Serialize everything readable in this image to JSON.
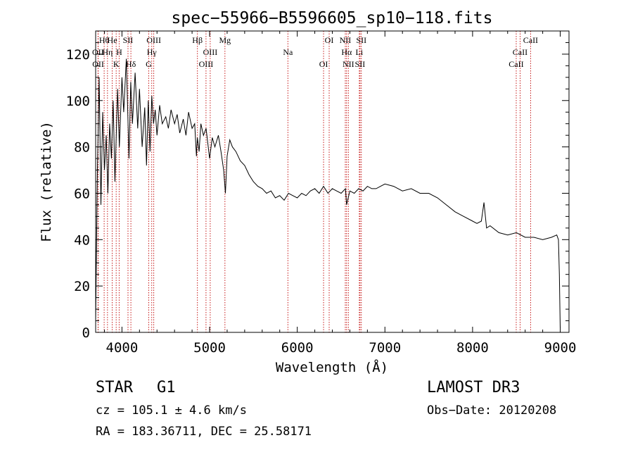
{
  "chart_data": {
    "type": "line",
    "title": "spec−55966−B5596605_sp10−118.fits",
    "xlabel": "Wavelength (Å)",
    "ylabel": "Flux (relative)",
    "xlim": [
      3700,
      9100
    ],
    "ylim": [
      0,
      130
    ],
    "xticks": [
      4000,
      5000,
      6000,
      7000,
      8000,
      9000
    ],
    "yticks": [
      0,
      20,
      40,
      60,
      80,
      100,
      120
    ],
    "grid": false,
    "series": [
      {
        "name": "flux",
        "x": [
          3700,
          3720,
          3740,
          3760,
          3780,
          3800,
          3820,
          3840,
          3860,
          3880,
          3900,
          3920,
          3950,
          3970,
          4000,
          4020,
          4050,
          4080,
          4100,
          4120,
          4150,
          4180,
          4200,
          4230,
          4260,
          4280,
          4300,
          4320,
          4340,
          4360,
          4380,
          4400,
          4430,
          4460,
          4500,
          4530,
          4560,
          4600,
          4630,
          4660,
          4700,
          4730,
          4760,
          4800,
          4830,
          4850,
          4860,
          4880,
          4900,
          4930,
          4960,
          5000,
          5030,
          5060,
          5100,
          5130,
          5160,
          5180,
          5200,
          5230,
          5260,
          5300,
          5350,
          5400,
          5450,
          5500,
          5550,
          5600,
          5650,
          5700,
          5750,
          5800,
          5850,
          5900,
          5950,
          6000,
          6050,
          6100,
          6150,
          6200,
          6250,
          6300,
          6350,
          6400,
          6450,
          6500,
          6550,
          6563,
          6600,
          6650,
          6700,
          6750,
          6800,
          6850,
          6900,
          6950,
          7000,
          7100,
          7200,
          7300,
          7400,
          7500,
          7600,
          7700,
          7800,
          7900,
          8000,
          8050,
          8100,
          8130,
          8160,
          8200,
          8300,
          8400,
          8500,
          8600,
          8700,
          8800,
          8900,
          8960,
          8980,
          8990,
          9000
        ],
        "values": [
          5,
          70,
          110,
          55,
          95,
          70,
          85,
          60,
          90,
          75,
          100,
          65,
          105,
          80,
          110,
          95,
          118,
          75,
          108,
          90,
          112,
          88,
          105,
          80,
          97,
          72,
          100,
          78,
          102,
          90,
          96,
          85,
          98,
          90,
          93,
          88,
          96,
          90,
          94,
          86,
          92,
          85,
          95,
          88,
          90,
          76,
          84,
          78,
          90,
          85,
          88,
          75,
          84,
          80,
          85,
          78,
          70,
          60,
          76,
          83,
          80,
          78,
          74,
          72,
          68,
          65,
          63,
          62,
          60,
          61,
          58,
          59,
          57,
          60,
          59,
          58,
          60,
          59,
          61,
          62,
          60,
          63,
          60,
          62,
          61,
          60,
          62,
          55,
          61,
          60,
          62,
          61,
          63,
          62,
          62,
          63,
          64,
          63,
          61,
          62,
          60,
          60,
          58,
          55,
          52,
          50,
          48,
          47,
          48,
          56,
          45,
          46,
          43,
          42,
          43,
          41,
          41,
          40,
          41,
          42,
          40,
          25,
          2
        ]
      }
    ],
    "line_markers": [
      {
        "label": "Hθ",
        "x": 3797
      },
      {
        "label": "OII",
        "x": 3727
      },
      {
        "label": "OII",
        "x": 3729
      },
      {
        "label": "He",
        "x": 3889
      },
      {
        "label": "Hη",
        "x": 3835
      },
      {
        "label": "K",
        "x": 3934
      },
      {
        "label": "SII",
        "x": 4069
      },
      {
        "label": "H",
        "x": 3968
      },
      {
        "label": "Hδ",
        "x": 4102
      },
      {
        "label": "OIII",
        "x": 4363
      },
      {
        "label": "Hγ",
        "x": 4340
      },
      {
        "label": "G",
        "x": 4305
      },
      {
        "label": "Hβ",
        "x": 4861
      },
      {
        "label": "OIII",
        "x": 5007
      },
      {
        "label": "OIII",
        "x": 4959
      },
      {
        "label": "Mg",
        "x": 5175
      },
      {
        "label": "Na",
        "x": 5893
      },
      {
        "label": "OI",
        "x": 6300
      },
      {
        "label": "OI",
        "x": 6364
      },
      {
        "label": "Hα",
        "x": 6563
      },
      {
        "label": "SII",
        "x": 6716
      },
      {
        "label": "NII",
        "x": 6548
      },
      {
        "label": "Li",
        "x": 6708
      },
      {
        "label": "NII",
        "x": 6583
      },
      {
        "label": "SII",
        "x": 6731
      },
      {
        "label": "CaII",
        "x": 8542
      },
      {
        "label": "CaII",
        "x": 8498
      },
      {
        "label": "CaII",
        "x": 8662
      }
    ]
  },
  "info": {
    "object_type": "STAR",
    "subclass": "G1",
    "survey": "LAMOST DR3",
    "redshift": "cz = 105.1 ± 4.6 km/s",
    "obs_date": "Obs−Date: 20120208",
    "coords": "RA = 183.36711, DEC =  25.58171"
  },
  "colors": {
    "spectrum": "#000000",
    "marker": "#c00000",
    "axis": "#000000"
  }
}
